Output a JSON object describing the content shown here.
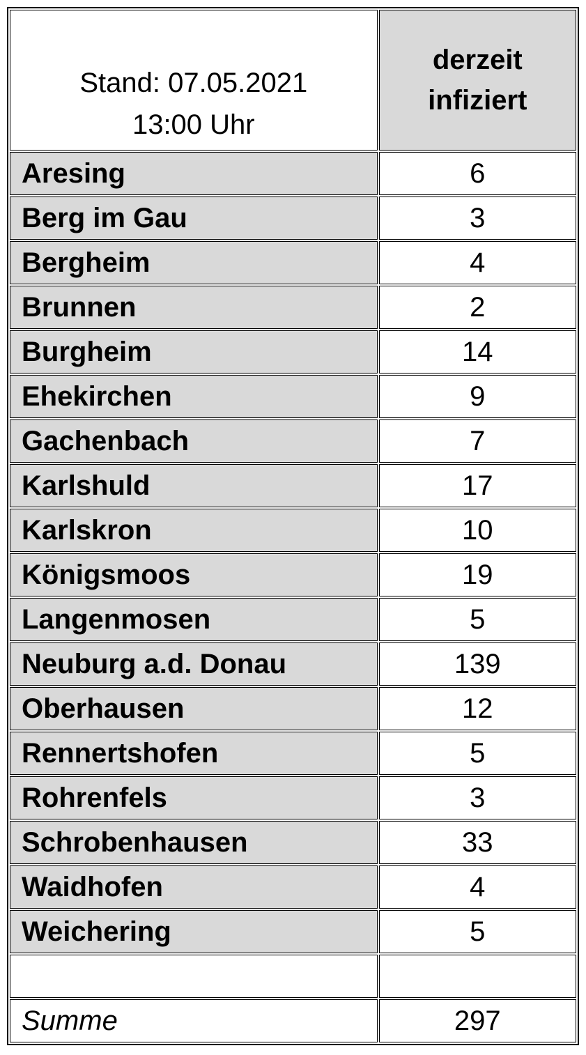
{
  "table": {
    "header": {
      "stand_line1": "Stand: 07.05.2021",
      "stand_line2": "13:00 Uhr",
      "infected_line1": "derzeit",
      "infected_line2": "infiziert"
    },
    "rows": [
      {
        "name": "Aresing",
        "value": "6"
      },
      {
        "name": "Berg im Gau",
        "value": "3"
      },
      {
        "name": "Bergheim",
        "value": "4"
      },
      {
        "name": "Brunnen",
        "value": "2"
      },
      {
        "name": "Burgheim",
        "value": "14"
      },
      {
        "name": "Ehekirchen",
        "value": "9"
      },
      {
        "name": "Gachenbach",
        "value": "7"
      },
      {
        "name": "Karlshuld",
        "value": "17"
      },
      {
        "name": "Karlskron",
        "value": "10"
      },
      {
        "name": "Königsmoos",
        "value": "19"
      },
      {
        "name": "Langenmosen",
        "value": "5"
      },
      {
        "name": "Neuburg a.d. Donau",
        "value": "139"
      },
      {
        "name": "Oberhausen",
        "value": "12"
      },
      {
        "name": "Rennertshofen",
        "value": "5"
      },
      {
        "name": "Rohrenfels",
        "value": "3"
      },
      {
        "name": "Schrobenhausen",
        "value": "33"
      },
      {
        "name": "Waidhofen",
        "value": "4"
      },
      {
        "name": "Weichering",
        "value": "5"
      }
    ],
    "empty_row": {
      "name": "",
      "value": ""
    },
    "summary": {
      "label": "Summe",
      "value": "297"
    }
  },
  "colors": {
    "cell_gray": "#d9d9d9",
    "border": "#000000",
    "background": "#ffffff"
  }
}
